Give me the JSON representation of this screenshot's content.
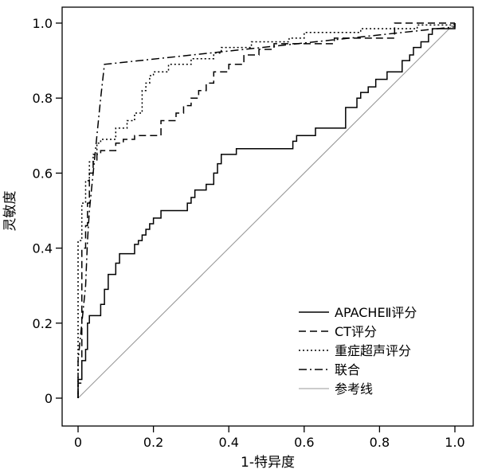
{
  "chart_data": {
    "type": "line",
    "title": "",
    "xlabel": "1-特异度",
    "ylabel": "灵敏度",
    "xlim": [
      0,
      1
    ],
    "ylim": [
      0,
      1
    ],
    "x_ticks": [
      "0",
      "0.2",
      "0.4",
      "0.6",
      "0.8",
      "1.0"
    ],
    "y_ticks": [
      "0",
      "0.2",
      "0.4",
      "0.6",
      "0.8",
      "1.0"
    ],
    "grid": false,
    "legend_position": "bottom-right",
    "series": [
      {
        "name": "APACHEⅡ评分",
        "style": "solid",
        "color": "#000000",
        "points": [
          [
            0,
            0
          ],
          [
            0,
            0.05
          ],
          [
            0.01,
            0.05
          ],
          [
            0.01,
            0.1
          ],
          [
            0.02,
            0.1
          ],
          [
            0.02,
            0.13
          ],
          [
            0.025,
            0.13
          ],
          [
            0.025,
            0.2
          ],
          [
            0.03,
            0.2
          ],
          [
            0.03,
            0.22
          ],
          [
            0.06,
            0.22
          ],
          [
            0.06,
            0.25
          ],
          [
            0.07,
            0.25
          ],
          [
            0.07,
            0.29
          ],
          [
            0.08,
            0.29
          ],
          [
            0.08,
            0.33
          ],
          [
            0.1,
            0.33
          ],
          [
            0.1,
            0.36
          ],
          [
            0.11,
            0.36
          ],
          [
            0.11,
            0.385
          ],
          [
            0.15,
            0.385
          ],
          [
            0.15,
            0.41
          ],
          [
            0.16,
            0.41
          ],
          [
            0.16,
            0.42
          ],
          [
            0.17,
            0.42
          ],
          [
            0.17,
            0.435
          ],
          [
            0.18,
            0.435
          ],
          [
            0.18,
            0.45
          ],
          [
            0.19,
            0.45
          ],
          [
            0.19,
            0.465
          ],
          [
            0.2,
            0.465
          ],
          [
            0.2,
            0.48
          ],
          [
            0.22,
            0.48
          ],
          [
            0.22,
            0.5
          ],
          [
            0.29,
            0.5
          ],
          [
            0.29,
            0.52
          ],
          [
            0.3,
            0.52
          ],
          [
            0.3,
            0.535
          ],
          [
            0.31,
            0.535
          ],
          [
            0.31,
            0.555
          ],
          [
            0.34,
            0.555
          ],
          [
            0.34,
            0.57
          ],
          [
            0.36,
            0.57
          ],
          [
            0.36,
            0.6
          ],
          [
            0.37,
            0.6
          ],
          [
            0.37,
            0.625
          ],
          [
            0.38,
            0.625
          ],
          [
            0.38,
            0.65
          ],
          [
            0.42,
            0.65
          ],
          [
            0.42,
            0.665
          ],
          [
            0.57,
            0.665
          ],
          [
            0.57,
            0.685
          ],
          [
            0.58,
            0.685
          ],
          [
            0.58,
            0.7
          ],
          [
            0.63,
            0.7
          ],
          [
            0.63,
            0.72
          ],
          [
            0.71,
            0.72
          ],
          [
            0.71,
            0.775
          ],
          [
            0.74,
            0.775
          ],
          [
            0.74,
            0.8
          ],
          [
            0.75,
            0.8
          ],
          [
            0.75,
            0.815
          ],
          [
            0.77,
            0.815
          ],
          [
            0.77,
            0.83
          ],
          [
            0.79,
            0.83
          ],
          [
            0.79,
            0.85
          ],
          [
            0.82,
            0.85
          ],
          [
            0.82,
            0.87
          ],
          [
            0.86,
            0.87
          ],
          [
            0.86,
            0.9
          ],
          [
            0.88,
            0.9
          ],
          [
            0.88,
            0.915
          ],
          [
            0.89,
            0.915
          ],
          [
            0.89,
            0.935
          ],
          [
            0.91,
            0.935
          ],
          [
            0.91,
            0.95
          ],
          [
            0.93,
            0.95
          ],
          [
            0.93,
            0.97
          ],
          [
            0.94,
            0.97
          ],
          [
            0.94,
            0.985
          ],
          [
            1.0,
            0.985
          ],
          [
            1.0,
            1.0
          ]
        ]
      },
      {
        "name": "CT评分",
        "style": "dashed",
        "color": "#000000",
        "points": [
          [
            0,
            0
          ],
          [
            0,
            0.04
          ],
          [
            0.01,
            0.04
          ],
          [
            0.01,
            0.4
          ],
          [
            0.02,
            0.4
          ],
          [
            0.02,
            0.46
          ],
          [
            0.025,
            0.46
          ],
          [
            0.025,
            0.52
          ],
          [
            0.03,
            0.52
          ],
          [
            0.03,
            0.6
          ],
          [
            0.04,
            0.6
          ],
          [
            0.04,
            0.63
          ],
          [
            0.05,
            0.63
          ],
          [
            0.05,
            0.65
          ],
          [
            0.06,
            0.65
          ],
          [
            0.06,
            0.66
          ],
          [
            0.1,
            0.66
          ],
          [
            0.1,
            0.68
          ],
          [
            0.12,
            0.68
          ],
          [
            0.12,
            0.69
          ],
          [
            0.15,
            0.69
          ],
          [
            0.15,
            0.7
          ],
          [
            0.22,
            0.7
          ],
          [
            0.22,
            0.74
          ],
          [
            0.26,
            0.74
          ],
          [
            0.26,
            0.76
          ],
          [
            0.28,
            0.76
          ],
          [
            0.28,
            0.78
          ],
          [
            0.3,
            0.78
          ],
          [
            0.3,
            0.8
          ],
          [
            0.32,
            0.8
          ],
          [
            0.32,
            0.82
          ],
          [
            0.34,
            0.82
          ],
          [
            0.34,
            0.84
          ],
          [
            0.36,
            0.84
          ],
          [
            0.36,
            0.87
          ],
          [
            0.4,
            0.87
          ],
          [
            0.4,
            0.89
          ],
          [
            0.44,
            0.89
          ],
          [
            0.44,
            0.915
          ],
          [
            0.48,
            0.915
          ],
          [
            0.48,
            0.93
          ],
          [
            0.52,
            0.93
          ],
          [
            0.52,
            0.945
          ],
          [
            0.68,
            0.945
          ],
          [
            0.68,
            0.96
          ],
          [
            0.84,
            0.96
          ],
          [
            0.84,
            1.0
          ],
          [
            1.0,
            1.0
          ]
        ]
      },
      {
        "name": "重症超声评分",
        "style": "dotted",
        "color": "#000000",
        "points": [
          [
            0,
            0
          ],
          [
            0,
            0.42
          ],
          [
            0.01,
            0.42
          ],
          [
            0.01,
            0.52
          ],
          [
            0.02,
            0.52
          ],
          [
            0.02,
            0.58
          ],
          [
            0.03,
            0.58
          ],
          [
            0.03,
            0.63
          ],
          [
            0.04,
            0.63
          ],
          [
            0.04,
            0.65
          ],
          [
            0.05,
            0.65
          ],
          [
            0.05,
            0.68
          ],
          [
            0.06,
            0.68
          ],
          [
            0.06,
            0.69
          ],
          [
            0.1,
            0.69
          ],
          [
            0.1,
            0.72
          ],
          [
            0.13,
            0.72
          ],
          [
            0.13,
            0.74
          ],
          [
            0.15,
            0.74
          ],
          [
            0.15,
            0.76
          ],
          [
            0.17,
            0.76
          ],
          [
            0.17,
            0.82
          ],
          [
            0.18,
            0.82
          ],
          [
            0.18,
            0.84
          ],
          [
            0.19,
            0.84
          ],
          [
            0.19,
            0.86
          ],
          [
            0.2,
            0.86
          ],
          [
            0.2,
            0.87
          ],
          [
            0.24,
            0.87
          ],
          [
            0.24,
            0.89
          ],
          [
            0.3,
            0.89
          ],
          [
            0.3,
            0.905
          ],
          [
            0.36,
            0.905
          ],
          [
            0.36,
            0.92
          ],
          [
            0.38,
            0.92
          ],
          [
            0.38,
            0.935
          ],
          [
            0.46,
            0.935
          ],
          [
            0.46,
            0.95
          ],
          [
            0.56,
            0.95
          ],
          [
            0.56,
            0.96
          ],
          [
            0.6,
            0.96
          ],
          [
            0.6,
            0.975
          ],
          [
            0.75,
            0.975
          ],
          [
            0.75,
            0.985
          ],
          [
            0.9,
            0.985
          ],
          [
            0.9,
            0.995
          ],
          [
            1.0,
            0.995
          ],
          [
            1.0,
            1.0
          ]
        ]
      },
      {
        "name": "联合",
        "style": "dashdot",
        "color": "#000000",
        "points": [
          [
            0,
            0
          ],
          [
            0,
            0.1
          ],
          [
            0.01,
            0.2
          ],
          [
            0.02,
            0.3
          ],
          [
            0.025,
            0.42
          ],
          [
            0.03,
            0.5
          ],
          [
            0.04,
            0.6
          ],
          [
            0.05,
            0.7
          ],
          [
            0.06,
            0.8
          ],
          [
            0.07,
            0.89
          ],
          [
            1.0,
            0.99
          ],
          [
            1.0,
            1.0
          ]
        ]
      },
      {
        "name": "参考线",
        "style": "solid",
        "color": "#999999",
        "points": [
          [
            0,
            0
          ],
          [
            1,
            1
          ]
        ]
      }
    ]
  }
}
